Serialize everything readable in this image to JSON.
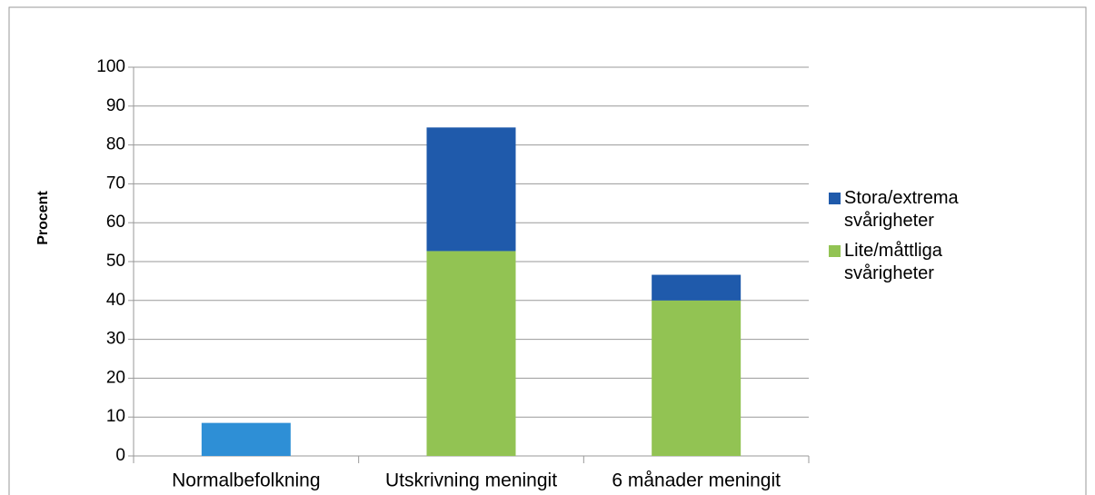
{
  "chart_data": {
    "type": "stacked_bar",
    "y_label": "Procent",
    "categories": [
      "Normalbefolkning",
      "Utskrivning meningit",
      "6 månader meningit"
    ],
    "series": [
      {
        "name": "Lite/måttliga svårigheter",
        "color": "#92c353",
        "point_colors": [
          "#2e8fd6",
          "#92c353",
          "#92c353"
        ],
        "values": [
          8.5,
          52.7,
          40
        ]
      },
      {
        "name": "Stora/extrema svårigheter",
        "color": "#1f5aab",
        "values": [
          null,
          31.8,
          6.6
        ]
      }
    ],
    "ylim": [
      0,
      100
    ],
    "yticks": [
      0,
      10,
      20,
      30,
      40,
      50,
      60,
      70,
      80,
      90,
      100
    ],
    "grid": true,
    "legend": "right"
  }
}
